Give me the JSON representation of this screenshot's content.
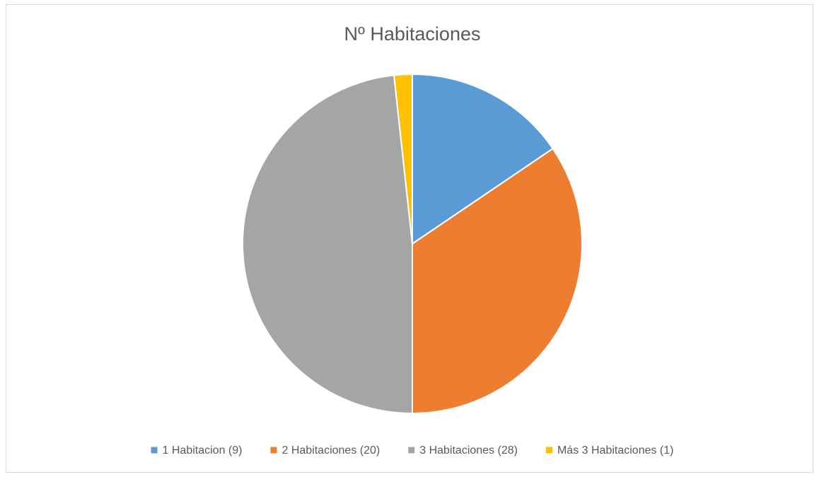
{
  "chart_data": {
    "type": "pie",
    "title": "Nº Habitaciones",
    "categories": [
      "1 Habitacion  (9)",
      "2 Habitaciones  (20)",
      "3 Habitaciones  (28)",
      "Más 3 Habitaciones (1)"
    ],
    "values": [
      9,
      20,
      28,
      1
    ],
    "colors": [
      "#5b9bd5",
      "#ed7d31",
      "#a5a5a5",
      "#ffc000"
    ],
    "legend": "bottom"
  }
}
